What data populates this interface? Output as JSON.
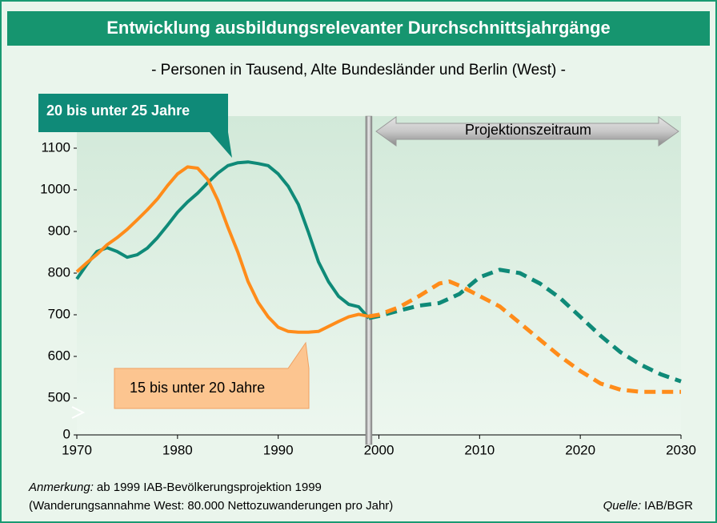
{
  "chart_data": {
    "type": "line",
    "title": "Entwicklung ausbildungsrelevanter Durchschnittsjahrgänge",
    "subtitle": "- Personen in Tausend, Alte Bundesländer und Berlin (West) -",
    "projection_label": "Projektionszeitraum",
    "projection_start": 1999,
    "axis_break": true,
    "grid": false,
    "xlim": [
      1970,
      2030
    ],
    "xticks": [
      1970,
      1980,
      1990,
      2000,
      2010,
      2020,
      2030
    ],
    "ylim": [
      0,
      1100
    ],
    "yticks": [
      0,
      500,
      600,
      700,
      800,
      900,
      1000,
      1100
    ],
    "series": [
      {
        "name": "20 bis unter 25 Jahre",
        "color": "#0f8a78",
        "x": [
          1970,
          1971,
          1972,
          1973,
          1974,
          1975,
          1976,
          1977,
          1978,
          1979,
          1980,
          1981,
          1982,
          1983,
          1984,
          1985,
          1986,
          1987,
          1988,
          1989,
          1990,
          1991,
          1992,
          1993,
          1994,
          1995,
          1996,
          1997,
          1998,
          1999,
          2000,
          2002,
          2004,
          2006,
          2008,
          2010,
          2012,
          2014,
          2016,
          2018,
          2020,
          2022,
          2024,
          2026,
          2028,
          2030
        ],
        "values": [
          786,
          821,
          852,
          861,
          852,
          838,
          844,
          860,
          885,
          915,
          946,
          971,
          992,
          1017,
          1040,
          1058,
          1065,
          1067,
          1063,
          1058,
          1038,
          1008,
          965,
          898,
          827,
          779,
          744,
          725,
          719,
          692,
          697,
          710,
          722,
          728,
          750,
          790,
          808,
          800,
          775,
          740,
          695,
          650,
          610,
          580,
          557,
          540
        ]
      },
      {
        "name": "15 bis unter 20 Jahre",
        "color": "#ff8c1a",
        "x": [
          1970,
          1971,
          1972,
          1973,
          1974,
          1975,
          1976,
          1977,
          1978,
          1979,
          1980,
          1981,
          1982,
          1983,
          1984,
          1985,
          1986,
          1987,
          1988,
          1989,
          1990,
          1991,
          1992,
          1993,
          1994,
          1995,
          1996,
          1997,
          1998,
          1999,
          2000,
          2002,
          2004,
          2006,
          2007,
          2008,
          2010,
          2012,
          2014,
          2016,
          2018,
          2020,
          2022,
          2024,
          2026,
          2028,
          2030
        ],
        "values": [
          803,
          825,
          845,
          868,
          885,
          905,
          928,
          952,
          978,
          1010,
          1038,
          1055,
          1052,
          1025,
          975,
          910,
          850,
          780,
          730,
          695,
          670,
          660,
          658,
          658,
          660,
          672,
          684,
          695,
          701,
          696,
          700,
          718,
          745,
          775,
          780,
          770,
          745,
          720,
          680,
          640,
          600,
          565,
          535,
          520,
          515,
          515,
          515
        ]
      }
    ],
    "annotation": {
      "label": "Anmerkung:",
      "text": "ab 1999 IAB-Bevölkerungsprojektion 1999",
      "line2": "(Wanderungsannahme West: 80.000 Nettozuwanderungen pro Jahr)"
    },
    "source": {
      "label": "Quelle:",
      "text": "IAB/BGR"
    }
  }
}
